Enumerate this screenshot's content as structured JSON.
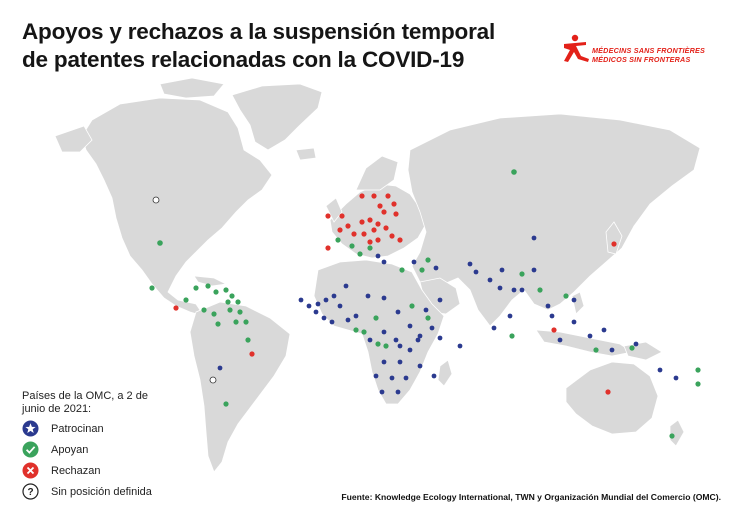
{
  "title": "Apoyos y rechazos a la suspensión temporal de patentes relacionadas con la COVID-19",
  "logo": {
    "line1": "MÉDECINS SANS FRONTIÈRES",
    "line2": "MÉDICOS SIN FRONTERAS"
  },
  "legend": {
    "title": "Países de la OMC, a 2 de junio de 2021:",
    "items": [
      {
        "label": "Patrocinan",
        "icon": "star-icon",
        "color": "#2b3a8f"
      },
      {
        "label": "Apoyan",
        "icon": "check-icon",
        "color": "#3aa35c"
      },
      {
        "label": "Rechazan",
        "icon": "x-icon",
        "color": "#e0312b"
      },
      {
        "label": "Sin posición definida",
        "icon": "question-icon",
        "color": "#222222"
      }
    ]
  },
  "source": "Fuente: Knowledge Ecology International, TWN y Organización Mundial del Comercio (OMC).",
  "colors": {
    "land": "#d9d9d9",
    "land_stroke": "#ffffff",
    "background": "#ffffff",
    "brand": "#e32119"
  }
}
